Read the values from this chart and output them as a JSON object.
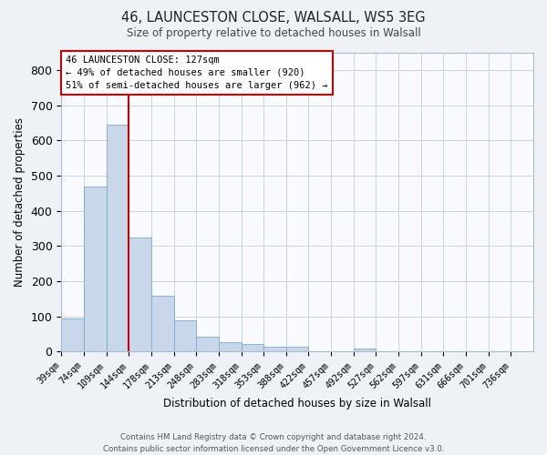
{
  "title_line1": "46, LAUNCESTON CLOSE, WALSALL, WS5 3EG",
  "title_line2": "Size of property relative to detached houses in Walsall",
  "xlabel": "Distribution of detached houses by size in Walsall",
  "ylabel": "Number of detached properties",
  "bar_values": [
    95,
    470,
    645,
    325,
    158,
    90,
    43,
    28,
    22,
    15,
    13,
    0,
    0,
    8,
    0,
    0,
    0,
    0,
    0,
    0
  ],
  "bar_labels": [
    "39sqm",
    "74sqm",
    "109sqm",
    "144sqm",
    "178sqm",
    "213sqm",
    "248sqm",
    "283sqm",
    "318sqm",
    "353sqm",
    "388sqm",
    "422sqm",
    "457sqm",
    "492sqm",
    "527sqm",
    "562sqm",
    "597sqm",
    "631sqm",
    "666sqm",
    "701sqm",
    "736sqm"
  ],
  "bar_color": "#c8d8ea",
  "bar_edge_color": "#7aaac8",
  "vline_color": "#cc0000",
  "annotation_text": "46 LAUNCESTON CLOSE: 127sqm\n← 49% of detached houses are smaller (920)\n51% of semi-detached houses are larger (962) →",
  "ylim": [
    0,
    850
  ],
  "yticks": [
    0,
    100,
    200,
    300,
    400,
    500,
    600,
    700,
    800
  ],
  "footer_line1": "Contains HM Land Registry data © Crown copyright and database right 2024.",
  "footer_line2": "Contains public sector information licensed under the Open Government Licence v3.0.",
  "bg_color": "#eef2f7",
  "plot_bg_color": "#f8fafd",
  "grid_color": "#c8d4e0"
}
